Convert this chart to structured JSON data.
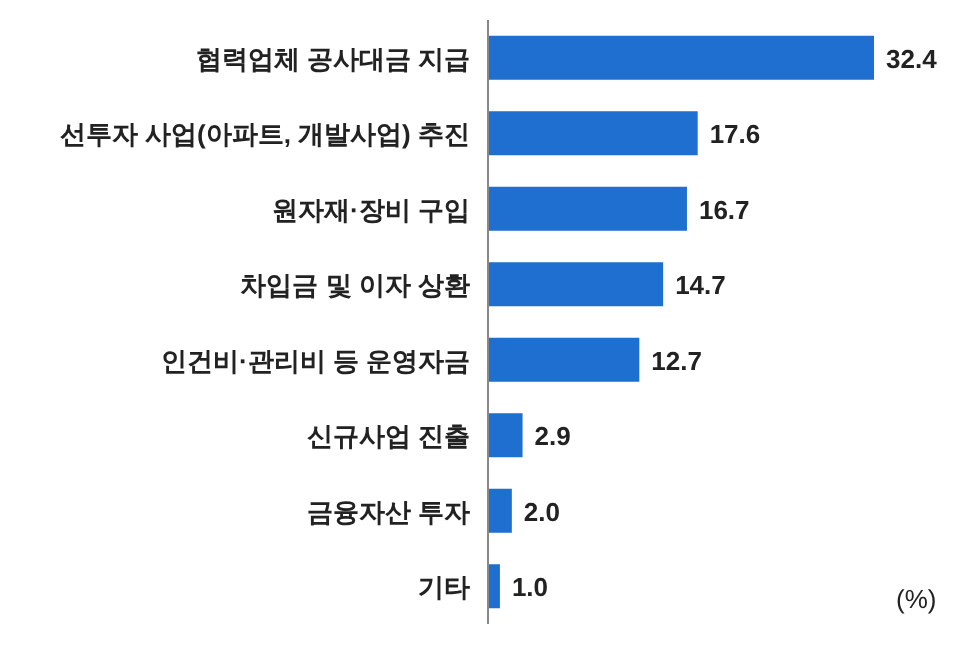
{
  "chart_data": {
    "type": "bar",
    "orientation": "horizontal",
    "categories": [
      "협력업체 공사대금 지급",
      "선투자 사업(아파트, 개발사업) 추진",
      "원자재·장비 구입",
      "차입금 및 이자 상환",
      "인건비·관리비 등 운영자금",
      "신규사업 진출",
      "금융자산 투자",
      "기타"
    ],
    "values": [
      32.4,
      17.6,
      16.7,
      14.7,
      12.7,
      2.9,
      2.0,
      1.0
    ],
    "color": "#1f6fd0",
    "value_labels": [
      "32.4",
      "17.6",
      "16.7",
      "14.7",
      "12.7",
      "2.9",
      "2.0",
      "1.0"
    ],
    "tick_labels": "y",
    "annotations": [
      "(%)"
    ]
  }
}
